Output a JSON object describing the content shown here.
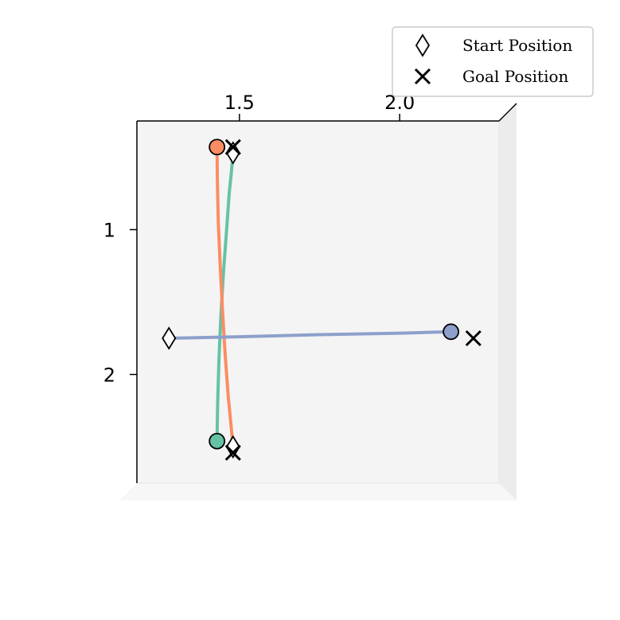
{
  "chart_data": {
    "type": "line",
    "projection": "3d",
    "view": "top-down",
    "title": "",
    "xlabel": "",
    "ylabel": "",
    "xticks": [
      1.5,
      2.0
    ],
    "yticks": [
      1,
      2
    ],
    "xlim": [
      1.18,
      2.31
    ],
    "ylim": [
      0.25,
      2.75
    ],
    "y_inverted": true,
    "grid": false,
    "pane_color": "#f4f4f4",
    "legend": {
      "placement": "top-right",
      "entries": [
        {
          "marker": "diamond",
          "label": "Start Position"
        },
        {
          "marker": "x",
          "label": "Goal Position"
        }
      ]
    },
    "series": [
      {
        "color": "#66c2a5",
        "x": [
          1.43,
          1.432,
          1.436,
          1.442,
          1.45,
          1.46,
          1.468,
          1.475,
          1.48
        ],
        "y": [
          2.46,
          2.2,
          1.9,
          1.6,
          1.3,
          1.0,
          0.75,
          0.6,
          0.47
        ],
        "start": [
          1.48,
          0.47
        ],
        "end": [
          1.43,
          2.46
        ],
        "goal": [
          1.48,
          0.43
        ]
      },
      {
        "color": "#fc8d62",
        "x": [
          1.43,
          1.431,
          1.434,
          1.44,
          1.447,
          1.455,
          1.465,
          1.475,
          1.48
        ],
        "y": [
          0.43,
          0.65,
          0.95,
          1.25,
          1.55,
          1.85,
          2.15,
          2.38,
          2.5
        ],
        "start": [
          1.48,
          2.5
        ],
        "end": [
          1.43,
          0.43
        ],
        "goal": [
          1.48,
          2.54
        ]
      },
      {
        "color": "#8da0cb",
        "x": [
          1.28,
          1.5,
          1.75,
          2.0,
          2.16
        ],
        "y": [
          1.75,
          1.74,
          1.725,
          1.715,
          1.705
        ],
        "start": [
          1.28,
          1.75
        ],
        "end": [
          2.16,
          1.705
        ],
        "goal": [
          2.23,
          1.75
        ]
      }
    ]
  }
}
